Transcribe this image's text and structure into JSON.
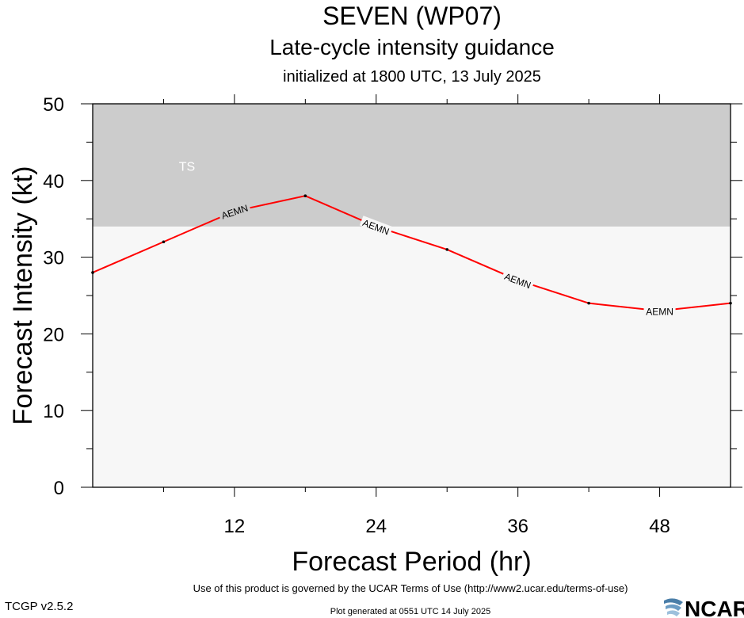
{
  "header": {
    "title": "SEVEN (WP07)",
    "subtitle": "Late-cycle intensity guidance",
    "init": "initialized at 1800 UTC, 13 July 2025"
  },
  "footer": {
    "terms": "Use of this product is governed by the UCAR Terms of Use (http://www2.ucar.edu/terms-of-use)",
    "generated": "Plot generated at 0551 UTC   14 July 2025",
    "version": "TCGP v2.5.2",
    "logo_text": "NCAR"
  },
  "chart_data": {
    "type": "line",
    "xlabel": "Forecast Period (hr)",
    "ylabel": "Forecast Intensity (kt)",
    "xlim": [
      0,
      54
    ],
    "ylim": [
      0,
      50
    ],
    "xticks": [
      "12",
      "24",
      "36",
      "48"
    ],
    "yticks": [
      "0",
      "10",
      "20",
      "30",
      "40",
      "50"
    ],
    "grid": false,
    "bands": [
      {
        "label": "TS",
        "from": 34,
        "to": 50,
        "color": "#cccccc"
      }
    ],
    "background_color": "#f7f7f7",
    "series": [
      {
        "name": "AEMN",
        "color": "#ff0000",
        "x": [
          0,
          6,
          12,
          18,
          24,
          30,
          36,
          42,
          48,
          54
        ],
        "y": [
          28,
          32,
          36,
          38,
          34,
          31,
          27,
          24,
          23,
          24
        ],
        "label_at_x": [
          12,
          24,
          36,
          48
        ]
      }
    ]
  }
}
